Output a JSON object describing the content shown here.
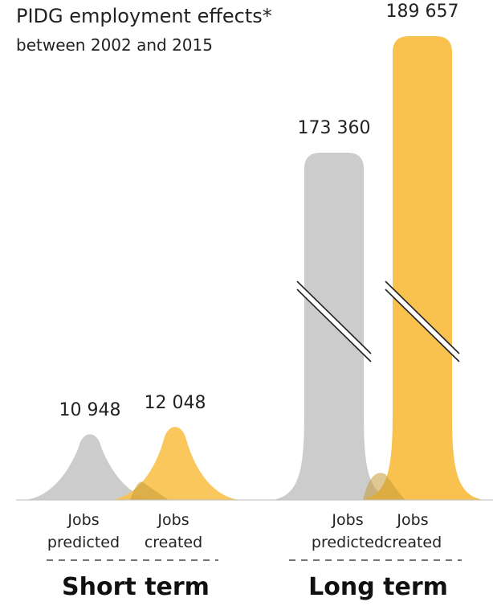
{
  "chart_data": {
    "type": "bar",
    "title": "PIDG employment effects*",
    "subtitle": "between 2002 and 2015",
    "groups": [
      {
        "name": "Short term",
        "bars": [
          {
            "label_line1": "Jobs",
            "label_line2": "predicted",
            "value": 10948,
            "value_label": "10 948",
            "color": "#cccccc"
          },
          {
            "label_line1": "Jobs",
            "label_line2": "created",
            "value": 12048,
            "value_label": "12 048",
            "color": "#f9c24e"
          }
        ]
      },
      {
        "name": "Long term",
        "bars": [
          {
            "label_line1": "Jobs",
            "label_line2": "predicted",
            "value": 173360,
            "value_label": "173 360",
            "color": "#cccccc"
          },
          {
            "label_line1": "Jobs",
            "label_line2": "created",
            "value": 189657,
            "value_label": "189 657",
            "color": "#f9c24e"
          }
        ]
      }
    ],
    "axis_break": true,
    "overlap_color": "#c79a3a"
  }
}
